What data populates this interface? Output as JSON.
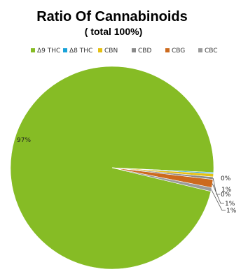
{
  "chart_data": {
    "type": "pie",
    "title": "Ratio Of Cannabinoids",
    "subtitle": "( total 100%)",
    "legend_position": "top",
    "slices": [
      {
        "name": "Δ9 THC",
        "value": 97,
        "label": "97%",
        "color": "#86bc25"
      },
      {
        "name": "Δ8 THC",
        "value": 0.2,
        "label": "0%",
        "color": "#1aa3d9"
      },
      {
        "name": "CBN",
        "value": 0.5,
        "label": "1%",
        "color": "#e5c012"
      },
      {
        "name": "CBD",
        "value": 0.4,
        "label": "0%",
        "color": "#8a8a8a"
      },
      {
        "name": "CBG",
        "value": 1.3,
        "label": "1%",
        "color": "#cc6a1e"
      },
      {
        "name": "CBC",
        "value": 0.6,
        "label": "1%",
        "color": "#9b9b9b"
      }
    ]
  }
}
